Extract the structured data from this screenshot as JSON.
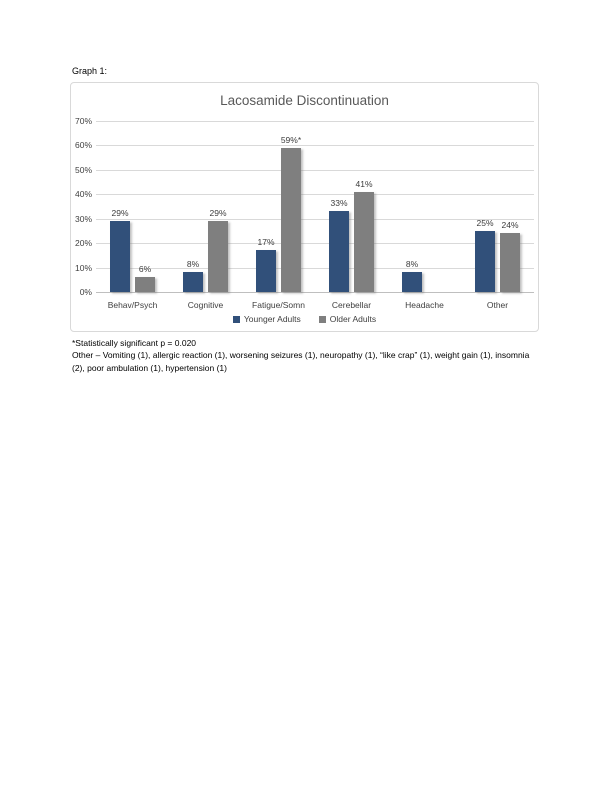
{
  "page": {
    "graph_label": "Graph 1:"
  },
  "chart_data": {
    "type": "bar",
    "title": "Lacosamide Discontinuation",
    "categories": [
      "Behav/Psych",
      "Cognitive",
      "Fatigue/Somn",
      "Cerebellar",
      "Headache",
      "Other"
    ],
    "series": [
      {
        "name": "Younger Adults",
        "color": "#31507a",
        "values": [
          29,
          8,
          17,
          33,
          8,
          25
        ],
        "labels": [
          "29%",
          "8%",
          "17%",
          "33%",
          "8%",
          "25%"
        ]
      },
      {
        "name": "Older Adults",
        "color": "#7f7f7f",
        "values": [
          6,
          29,
          59,
          41,
          null,
          24
        ],
        "labels": [
          "6%",
          "29%",
          "59%*",
          "41%",
          null,
          "24%"
        ]
      }
    ],
    "xlabel": "",
    "ylabel": "",
    "ylim": [
      0,
      70
    ],
    "yticks": [
      0,
      10,
      20,
      30,
      40,
      50,
      60,
      70
    ],
    "ytick_labels": [
      "0%",
      "10%",
      "20%",
      "30%",
      "40%",
      "50%",
      "60%",
      "70%"
    ],
    "grid": true,
    "legend_position": "bottom",
    "colors": {
      "gridline": "#d9d9d9",
      "axis_line": "#bfbfbf",
      "title": "#595959",
      "labels": "#3f3f3f"
    }
  },
  "footnotes": {
    "significance": "*Statistically significant p = 0.020",
    "other_detail": "Other – Vomiting (1), allergic reaction (1), worsening seizures (1), neuropathy (1), “like crap” (1), weight gain (1), insomnia (2), poor ambulation (1), hypertension (1)"
  }
}
